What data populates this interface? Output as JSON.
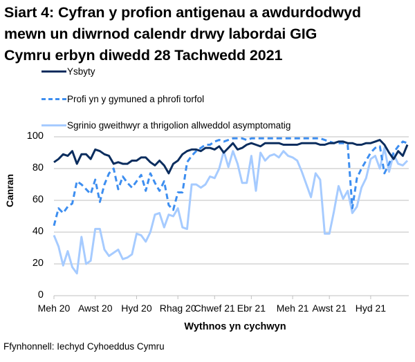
{
  "title_lines": [
    "Siart 4: Cyfran y profion antigenau a awdurdodwyd",
    "mewn un diwrnod calendr drwy labordai GIG",
    "Cymru erbyn diwedd 28 Tachwedd 2021"
  ],
  "source": "Ffynhonnell: Iechyd Cyhoeddus Cymru",
  "colors": {
    "ysbyty": "#0b2d5e",
    "profi": "#3d8ef0",
    "sgrinio": "#a6cbff",
    "grid": "#bfbfbf"
  },
  "chart_data": {
    "type": "line",
    "title": "Siart 4: Cyfran y profion antigenau a awdurdodwyd mewn un diwrnod calendr drwy labordai GIG Cymru erbyn diwedd 28 Tachwedd 2021",
    "xlabel": "Wythnos yn cychwyn",
    "ylabel": "Canran",
    "ylim": [
      0,
      100
    ],
    "yticks": [
      0,
      20,
      40,
      60,
      80,
      100
    ],
    "grid": true,
    "legend_position": "top",
    "x_tick_labels": [
      "Meh 20",
      "Awst 20",
      "Hyd 20",
      "Rhag 20",
      "Chwef 21",
      "Ebr 21",
      "Meh 21",
      "Awst 21",
      "Hyd 21"
    ],
    "x_tick_index": [
      0,
      9,
      18,
      27,
      35,
      43,
      52,
      60,
      69
    ],
    "n_points": 78,
    "series": [
      {
        "name": "Ysbyty",
        "style": "solid",
        "values": [
          84,
          86,
          89,
          88,
          91,
          83,
          89,
          89,
          86,
          92,
          91,
          89,
          88,
          83,
          84,
          83,
          83,
          85,
          85,
          87,
          87,
          84,
          82,
          85,
          82,
          77,
          83,
          85,
          89,
          91,
          92,
          92,
          91,
          93,
          93,
          92,
          94,
          90,
          93,
          96,
          92,
          93,
          95,
          96,
          95,
          94,
          96,
          96,
          96,
          96,
          95,
          95,
          95,
          95,
          96,
          96,
          96,
          96,
          95,
          95,
          96,
          96,
          97,
          97,
          96,
          96,
          95,
          95,
          96,
          96,
          97,
          98,
          95,
          90,
          86,
          91,
          88,
          95
        ]
      },
      {
        "name": "Profi yn y gymuned a phrofi torfol",
        "style": "dashed",
        "values": [
          44,
          55,
          52,
          56,
          58,
          72,
          70,
          67,
          64,
          73,
          59,
          70,
          77,
          80,
          67,
          75,
          71,
          68,
          72,
          76,
          66,
          77,
          71,
          66,
          72,
          57,
          54,
          65,
          65,
          84,
          88,
          91,
          93,
          95,
          95,
          97,
          98,
          97,
          98,
          99,
          99,
          99,
          98,
          99,
          99,
          99,
          99,
          99,
          99,
          99,
          99,
          99,
          99,
          99,
          99,
          99,
          99,
          99,
          99,
          98,
          97,
          96,
          96,
          96,
          95,
          55,
          74,
          80,
          85,
          90,
          93,
          94,
          77,
          83,
          90,
          94,
          97,
          96
        ]
      },
      {
        "name": "Sgrinio gweithwyr a thrigolion allweddol asymptomatig",
        "style": "solid",
        "values": [
          38,
          31,
          19,
          28,
          18,
          14,
          37,
          20,
          22,
          42,
          42,
          29,
          25,
          27,
          29,
          23,
          24,
          26,
          39,
          38,
          34,
          40,
          51,
          52,
          43,
          51,
          50,
          55,
          43,
          42,
          70,
          70,
          68,
          70,
          75,
          74,
          80,
          91,
          81,
          91,
          83,
          71,
          71,
          88,
          66,
          90,
          85,
          88,
          89,
          87,
          91,
          88,
          87,
          85,
          78,
          70,
          62,
          77,
          73,
          39,
          39,
          53,
          69,
          61,
          66,
          52,
          56,
          68,
          74,
          86,
          88,
          80,
          93,
          78,
          89,
          83,
          82,
          85
        ]
      }
    ]
  },
  "legend": [
    {
      "label": "Ysbyty"
    },
    {
      "label": "Profi yn y gymuned a phrofi torfol"
    },
    {
      "label": "Sgrinio gweithwyr a thrigolion allweddol asymptomatig"
    }
  ]
}
